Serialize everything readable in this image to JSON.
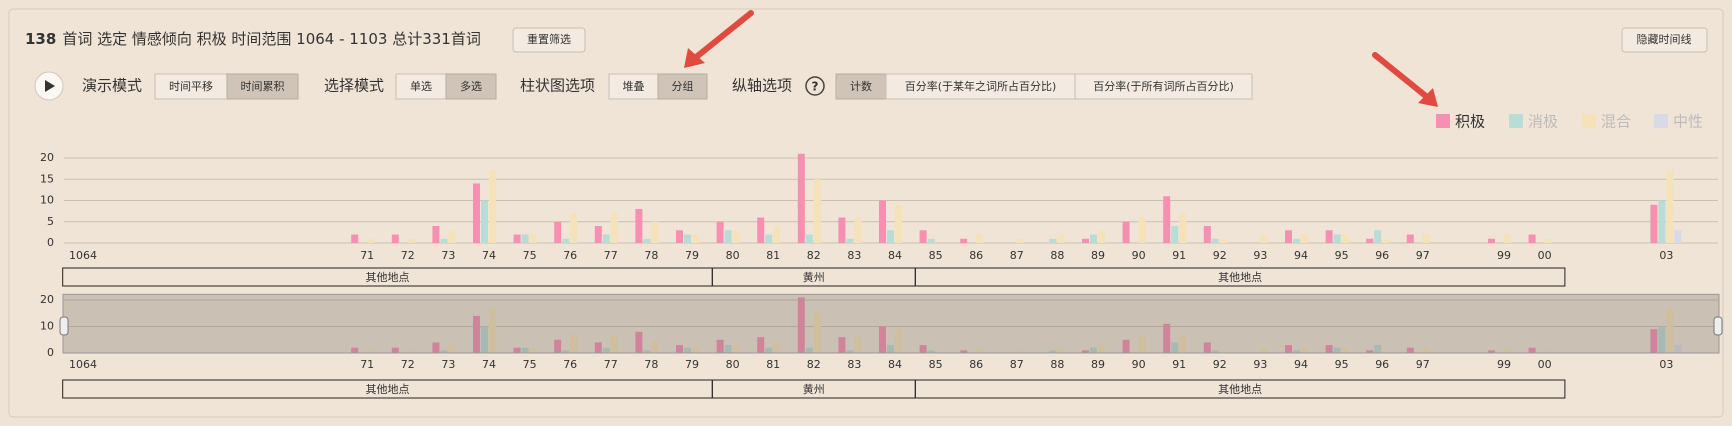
{
  "header": {
    "count": "138",
    "summary": "首词 选定 情感倾向 积极 时间范围 1064 - 1103 总计331首词",
    "reset_button": "重置筛选",
    "hide_timeline_button": "隐藏时间线"
  },
  "controls": [
    {
      "label": "演示模式",
      "options": [
        "时间平移",
        "时间累积"
      ],
      "selected": 1
    },
    {
      "label": "选择模式",
      "options": [
        "单选",
        "多选"
      ],
      "selected": 1
    },
    {
      "label": "柱状图选项",
      "options": [
        "堆叠",
        "分组"
      ],
      "selected": 1
    },
    {
      "label": "纵轴选项",
      "options": [
        "计数",
        "百分率(于某年之词所占百分比)",
        "百分率(于所有词所占百分比)"
      ],
      "selected": 0
    }
  ],
  "chart_data": {
    "type": "bar",
    "grid": true,
    "legend_position": "top-right",
    "categories": [
      "1064",
      null,
      null,
      null,
      null,
      null,
      null,
      "71",
      "72",
      "73",
      "74",
      "75",
      "76",
      "77",
      "78",
      "79",
      "80",
      "81",
      "82",
      "83",
      "84",
      "85",
      "86",
      "87",
      "88",
      "89",
      "90",
      "91",
      "92",
      "93",
      "94",
      "95",
      "96",
      "97",
      null,
      "99",
      "00",
      null,
      null,
      "03"
    ],
    "series": [
      {
        "name": "积极",
        "color": "#f78fb3",
        "active": true,
        "values": [
          0,
          0,
          0,
          0,
          0,
          0,
          0,
          2,
          2,
          4,
          14,
          2,
          5,
          4,
          8,
          3,
          5,
          6,
          21,
          6,
          10,
          3,
          1,
          0,
          0,
          1,
          5,
          11,
          4,
          0,
          3,
          3,
          1,
          2,
          0,
          1,
          2,
          0,
          0,
          9
        ]
      },
      {
        "name": "消极",
        "color": "#b8dcd6",
        "active": false,
        "values": [
          0,
          0,
          0,
          0,
          0,
          0,
          0,
          0,
          0,
          1,
          10,
          2,
          1,
          2,
          1,
          2,
          3,
          2,
          2,
          1,
          3,
          1,
          0,
          0,
          1,
          2,
          0,
          4,
          1,
          0,
          1,
          2,
          3,
          0,
          0,
          0,
          0,
          0,
          0,
          10
        ]
      },
      {
        "name": "混合",
        "color": "#f5e2b8",
        "active": false,
        "values": [
          0,
          0,
          0,
          0,
          0,
          0,
          0,
          1,
          1,
          3,
          17,
          2,
          7,
          7,
          5,
          2,
          3,
          4,
          15,
          6,
          9,
          0,
          2,
          1,
          2,
          3,
          6,
          7,
          1,
          2,
          2,
          2,
          1,
          2,
          0,
          2,
          1,
          0,
          0,
          17
        ]
      },
      {
        "name": "中性",
        "color": "#d8dae8",
        "active": false,
        "values": [
          0,
          0,
          0,
          0,
          0,
          0,
          0,
          0,
          0,
          0,
          0,
          0,
          0,
          0,
          0,
          0,
          0,
          0,
          0,
          0,
          0,
          0,
          0,
          0,
          0,
          0,
          0,
          0,
          0,
          0,
          0,
          0,
          0,
          0,
          0,
          0,
          0,
          0,
          0,
          3
        ]
      }
    ],
    "ylim": [
      0,
      21
    ],
    "yticks": [
      0,
      5,
      10,
      15,
      20
    ],
    "regions": [
      {
        "label": "其他地点",
        "start": 1064,
        "end": 1079
      },
      {
        "label": "黄州",
        "start": 1080,
        "end": 1084
      },
      {
        "label": "其他地点",
        "start": 1085,
        "end": 1100
      }
    ],
    "region_origin": 1064,
    "brush": {
      "ylim": [
        0,
        21
      ],
      "yticks": [
        0,
        10,
        20
      ]
    }
  }
}
